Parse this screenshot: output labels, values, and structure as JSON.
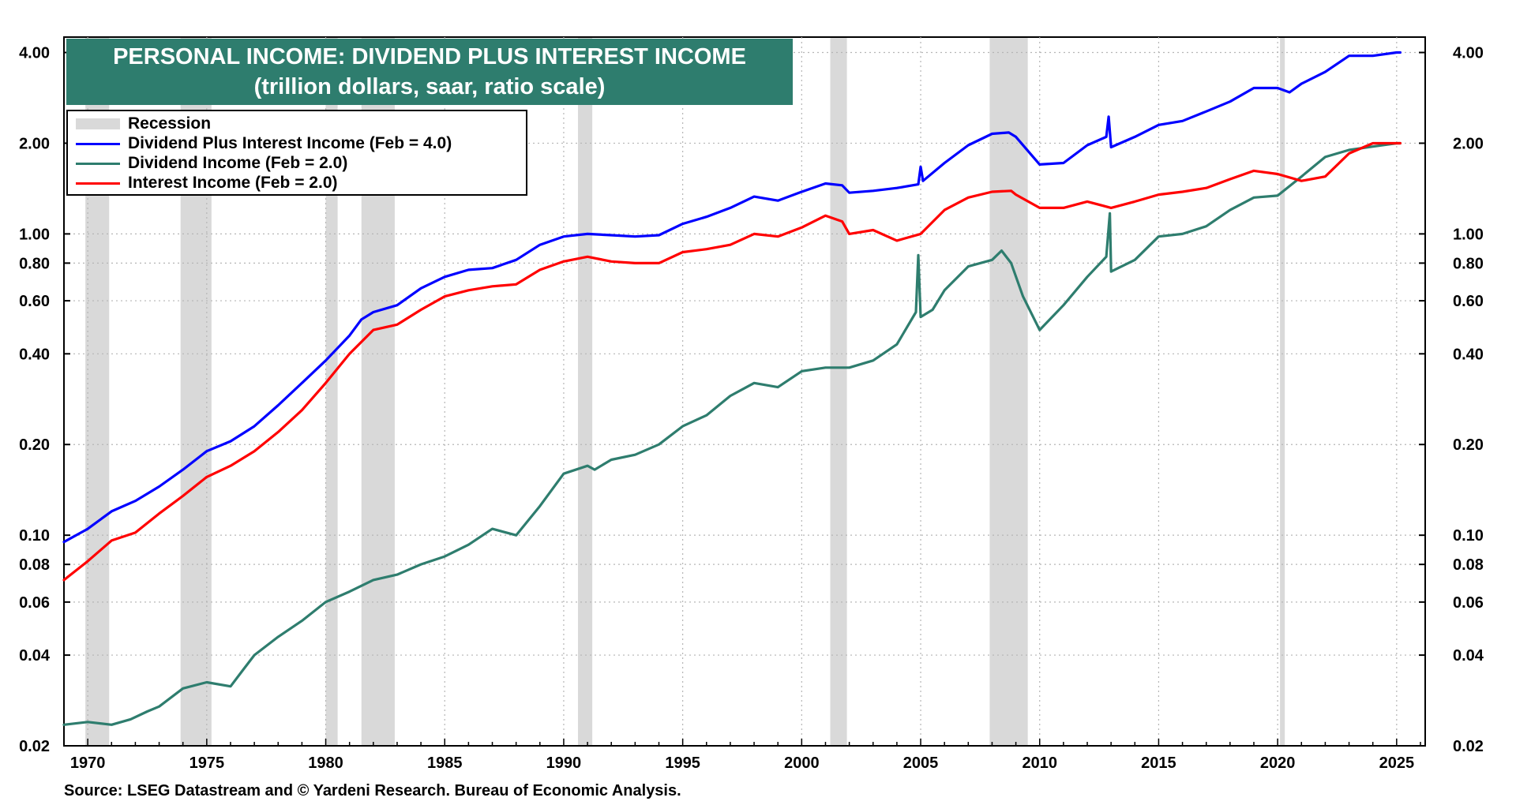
{
  "chart_data": {
    "type": "line",
    "title": "PERSONAL INCOME: DIVIDEND PLUS INTEREST INCOME",
    "subtitle": "(trillion dollars, saar, ratio scale)",
    "xlabel": "",
    "ylabel": "",
    "yscale": "log",
    "xlim": [
      1969,
      2026.2
    ],
    "ylim": [
      0.02,
      4.5
    ],
    "grid": true,
    "y_ticks": [
      {
        "value": 0.02,
        "label": "0.02"
      },
      {
        "value": 0.04,
        "label": "0.04"
      },
      {
        "value": 0.06,
        "label": "0.06"
      },
      {
        "value": 0.08,
        "label": "0.08"
      },
      {
        "value": 0.1,
        "label": "0.10"
      },
      {
        "value": 0.2,
        "label": "0.20"
      },
      {
        "value": 0.4,
        "label": "0.40"
      },
      {
        "value": 0.6,
        "label": "0.60"
      },
      {
        "value": 0.8,
        "label": "0.80"
      },
      {
        "value": 1.0,
        "label": "1.00"
      },
      {
        "value": 2.0,
        "label": "2.00"
      },
      {
        "value": 4.0,
        "label": "4.00"
      }
    ],
    "x_ticks": [
      {
        "value": 1970,
        "label": "1970"
      },
      {
        "value": 1975,
        "label": "1975"
      },
      {
        "value": 1980,
        "label": "1980"
      },
      {
        "value": 1985,
        "label": "1985"
      },
      {
        "value": 1990,
        "label": "1990"
      },
      {
        "value": 1995,
        "label": "1995"
      },
      {
        "value": 2000,
        "label": "2000"
      },
      {
        "value": 2005,
        "label": "2005"
      },
      {
        "value": 2010,
        "label": "2010"
      },
      {
        "value": 2015,
        "label": "2015"
      },
      {
        "value": 2020,
        "label": "2020"
      },
      {
        "value": 2025,
        "label": "2025"
      }
    ],
    "recessions": [
      [
        1969.9,
        1970.9
      ],
      [
        1973.9,
        1975.2
      ],
      [
        1980.0,
        1980.5
      ],
      [
        1981.5,
        1982.9
      ],
      [
        1990.6,
        1991.2
      ],
      [
        2001.2,
        2001.9
      ],
      [
        2007.9,
        2009.5
      ],
      [
        2020.1,
        2020.3
      ]
    ],
    "series": [
      {
        "name": "Dividend Plus Interest Income (Feb = 4.0)",
        "color": "#0000ff",
        "points": [
          [
            1969,
            0.095
          ],
          [
            1970,
            0.105
          ],
          [
            1971,
            0.12
          ],
          [
            1972,
            0.13
          ],
          [
            1973,
            0.145
          ],
          [
            1974,
            0.165
          ],
          [
            1975,
            0.19
          ],
          [
            1976,
            0.205
          ],
          [
            1977,
            0.23
          ],
          [
            1978,
            0.27
          ],
          [
            1979,
            0.32
          ],
          [
            1980,
            0.38
          ],
          [
            1981,
            0.46
          ],
          [
            1981.5,
            0.52
          ],
          [
            1982,
            0.55
          ],
          [
            1983,
            0.58
          ],
          [
            1984,
            0.66
          ],
          [
            1985,
            0.72
          ],
          [
            1986,
            0.76
          ],
          [
            1987,
            0.77
          ],
          [
            1988,
            0.82
          ],
          [
            1989,
            0.92
          ],
          [
            1990,
            0.98
          ],
          [
            1991,
            1.0
          ],
          [
            1992,
            0.99
          ],
          [
            1993,
            0.98
          ],
          [
            1994,
            0.99
          ],
          [
            1995,
            1.08
          ],
          [
            1996,
            1.14
          ],
          [
            1997,
            1.22
          ],
          [
            1998,
            1.33
          ],
          [
            1999,
            1.29
          ],
          [
            2000,
            1.38
          ],
          [
            2001,
            1.47
          ],
          [
            2001.7,
            1.45
          ],
          [
            2002,
            1.37
          ],
          [
            2003,
            1.39
          ],
          [
            2004,
            1.42
          ],
          [
            2004.9,
            1.46
          ],
          [
            2005,
            1.67
          ],
          [
            2005.1,
            1.5
          ],
          [
            2006,
            1.72
          ],
          [
            2007,
            1.97
          ],
          [
            2008,
            2.15
          ],
          [
            2008.7,
            2.17
          ],
          [
            2009,
            2.1
          ],
          [
            2010,
            1.7
          ],
          [
            2011,
            1.72
          ],
          [
            2012,
            1.97
          ],
          [
            2012.8,
            2.1
          ],
          [
            2012.9,
            2.45
          ],
          [
            2013,
            1.94
          ],
          [
            2014,
            2.1
          ],
          [
            2015,
            2.3
          ],
          [
            2016,
            2.37
          ],
          [
            2017,
            2.55
          ],
          [
            2018,
            2.75
          ],
          [
            2019,
            3.05
          ],
          [
            2020,
            3.05
          ],
          [
            2020.5,
            2.95
          ],
          [
            2021,
            3.15
          ],
          [
            2022,
            3.45
          ],
          [
            2023,
            3.9
          ],
          [
            2024,
            3.9
          ],
          [
            2025,
            4.0
          ],
          [
            2025.15,
            4.0
          ]
        ]
      },
      {
        "name": "Dividend Income (Feb = 2.0)",
        "color": "#2e7d6e",
        "points": [
          [
            1969,
            0.0235
          ],
          [
            1970,
            0.024
          ],
          [
            1971,
            0.0235
          ],
          [
            1971.8,
            0.0245
          ],
          [
            1972.5,
            0.026
          ],
          [
            1973,
            0.027
          ],
          [
            1974,
            0.031
          ],
          [
            1975,
            0.0325
          ],
          [
            1976,
            0.0315
          ],
          [
            1976.5,
            0.0355
          ],
          [
            1977,
            0.04
          ],
          [
            1978,
            0.046
          ],
          [
            1979,
            0.052
          ],
          [
            1980,
            0.06
          ],
          [
            1981,
            0.065
          ],
          [
            1982,
            0.071
          ],
          [
            1983,
            0.074
          ],
          [
            1984,
            0.08
          ],
          [
            1985,
            0.085
          ],
          [
            1986,
            0.093
          ],
          [
            1987,
            0.105
          ],
          [
            1988,
            0.1
          ],
          [
            1989,
            0.125
          ],
          [
            1990,
            0.16
          ],
          [
            1991,
            0.17
          ],
          [
            1991.3,
            0.165
          ],
          [
            1992,
            0.178
          ],
          [
            1993,
            0.185
          ],
          [
            1994,
            0.2
          ],
          [
            1995,
            0.23
          ],
          [
            1996,
            0.25
          ],
          [
            1997,
            0.29
          ],
          [
            1998,
            0.32
          ],
          [
            1999,
            0.31
          ],
          [
            2000,
            0.35
          ],
          [
            2001,
            0.36
          ],
          [
            2002,
            0.36
          ],
          [
            2003,
            0.38
          ],
          [
            2004,
            0.43
          ],
          [
            2004.8,
            0.55
          ],
          [
            2004.9,
            0.85
          ],
          [
            2005,
            0.53
          ],
          [
            2005.5,
            0.56
          ],
          [
            2006,
            0.65
          ],
          [
            2007,
            0.78
          ],
          [
            2008,
            0.82
          ],
          [
            2008.4,
            0.88
          ],
          [
            2008.8,
            0.8
          ],
          [
            2009.3,
            0.62
          ],
          [
            2010,
            0.48
          ],
          [
            2011,
            0.58
          ],
          [
            2012,
            0.72
          ],
          [
            2012.8,
            0.84
          ],
          [
            2012.95,
            1.17
          ],
          [
            2013,
            0.75
          ],
          [
            2014,
            0.82
          ],
          [
            2015,
            0.98
          ],
          [
            2016,
            1.0
          ],
          [
            2017,
            1.06
          ],
          [
            2018,
            1.2
          ],
          [
            2019,
            1.32
          ],
          [
            2020,
            1.34
          ],
          [
            2021,
            1.55
          ],
          [
            2022,
            1.8
          ],
          [
            2023,
            1.9
          ],
          [
            2024,
            1.95
          ],
          [
            2025,
            2.0
          ],
          [
            2025.15,
            2.0
          ]
        ]
      },
      {
        "name": "Interest Income (Feb = 2.0)",
        "color": "#ff0000",
        "points": [
          [
            1969,
            0.071
          ],
          [
            1970,
            0.082
          ],
          [
            1971,
            0.096
          ],
          [
            1972,
            0.102
          ],
          [
            1973,
            0.118
          ],
          [
            1974,
            0.135
          ],
          [
            1975,
            0.156
          ],
          [
            1976,
            0.17
          ],
          [
            1977,
            0.19
          ],
          [
            1978,
            0.22
          ],
          [
            1979,
            0.26
          ],
          [
            1980,
            0.32
          ],
          [
            1981,
            0.4
          ],
          [
            1982,
            0.48
          ],
          [
            1983,
            0.5
          ],
          [
            1984,
            0.56
          ],
          [
            1985,
            0.62
          ],
          [
            1986,
            0.65
          ],
          [
            1987,
            0.67
          ],
          [
            1988,
            0.68
          ],
          [
            1989,
            0.76
          ],
          [
            1990,
            0.81
          ],
          [
            1991,
            0.84
          ],
          [
            1992,
            0.81
          ],
          [
            1993,
            0.8
          ],
          [
            1994,
            0.8
          ],
          [
            1995,
            0.87
          ],
          [
            1996,
            0.89
          ],
          [
            1997,
            0.92
          ],
          [
            1998,
            1.0
          ],
          [
            1999,
            0.98
          ],
          [
            2000,
            1.05
          ],
          [
            2001,
            1.15
          ],
          [
            2001.7,
            1.1
          ],
          [
            2002,
            1.0
          ],
          [
            2003,
            1.03
          ],
          [
            2004,
            0.95
          ],
          [
            2005,
            1.0
          ],
          [
            2006,
            1.2
          ],
          [
            2007,
            1.32
          ],
          [
            2008,
            1.38
          ],
          [
            2008.8,
            1.39
          ],
          [
            2009,
            1.35
          ],
          [
            2010,
            1.22
          ],
          [
            2011,
            1.22
          ],
          [
            2012,
            1.28
          ],
          [
            2013,
            1.22
          ],
          [
            2014,
            1.28
          ],
          [
            2015,
            1.35
          ],
          [
            2016,
            1.38
          ],
          [
            2017,
            1.42
          ],
          [
            2018,
            1.52
          ],
          [
            2019,
            1.62
          ],
          [
            2020,
            1.58
          ],
          [
            2021,
            1.5
          ],
          [
            2022,
            1.55
          ],
          [
            2023,
            1.85
          ],
          [
            2024,
            2.0
          ],
          [
            2025,
            2.0
          ],
          [
            2025.15,
            2.0
          ]
        ]
      }
    ],
    "legend": {
      "position": "top-left",
      "recession_label": "Recession",
      "recession_color": "#d9d9d9"
    }
  },
  "source_text": "Source: LSEG Datastream and © Yardeni Research. Bureau of Economic Analysis."
}
